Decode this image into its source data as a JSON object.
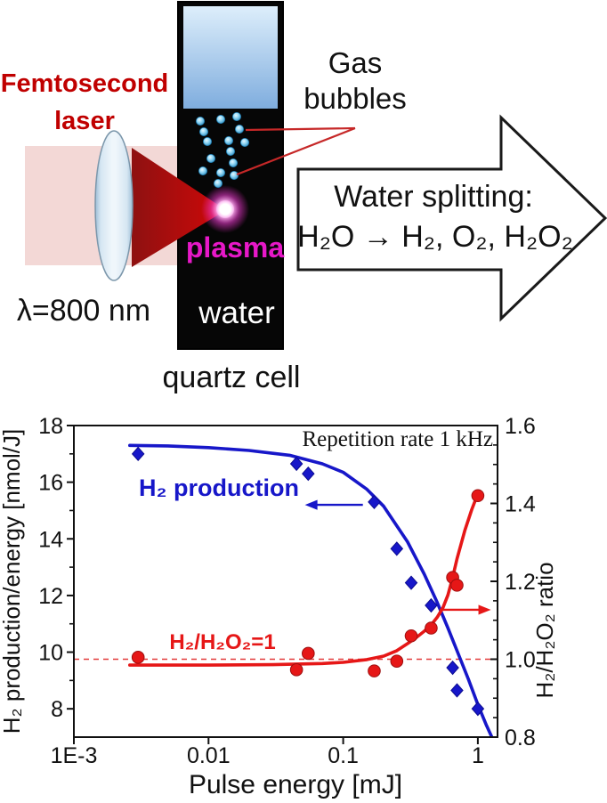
{
  "diagram": {
    "laser_label_line1": "Femtosecond",
    "laser_label_line2": "laser",
    "wavelength": "λ=800 nm",
    "gas_label_line1": "Gas",
    "gas_label_line2": "bubbles",
    "plasma_label": "plasma",
    "water_label": "water",
    "cell_label": "quartz cell",
    "arrow_title": "Water splitting:",
    "arrow_formula": "H₂O → H₂, O₂, H₂O₂",
    "colors": {
      "laser_text": "#c00000",
      "plasma_text": "#e718c8",
      "beam_pale": "#f3d8d6",
      "beam_dark": "#a50d0d",
      "bubble": "#54b7e8",
      "pointer_line": "#c62828"
    }
  },
  "chart_data": {
    "type": "scatter",
    "title": "",
    "x_axis": {
      "label": "Pulse energy [mJ]",
      "scale": "log",
      "min": 0.001,
      "max": 1.4,
      "ticks": [
        0.001,
        0.01,
        0.1,
        1
      ],
      "tick_labels": [
        "1E-3",
        "0.01",
        "0.1",
        "1"
      ]
    },
    "y_left": {
      "label": "H₂ production/energy [nmol/J]",
      "min": 7,
      "max": 18,
      "ticks": [
        8,
        10,
        12,
        14,
        16,
        18
      ],
      "tick_labels": [
        "8",
        "10",
        "12",
        "14",
        "16",
        "18"
      ],
      "minor_ticks": [
        9,
        11,
        13,
        15,
        17
      ]
    },
    "y_right": {
      "label": "H₂/H₂O₂ ratio",
      "min": 0.8,
      "max": 1.6,
      "ticks": [
        0.8,
        1.0,
        1.2,
        1.4,
        1.6
      ],
      "tick_labels": [
        "0.8",
        "1.0",
        "1.2",
        "1.4",
        "1.6"
      ],
      "minor_ticks": [
        0.85,
        0.9,
        0.95,
        1.05,
        1.1,
        1.15,
        1.25,
        1.3,
        1.35,
        1.45,
        1.5,
        1.55
      ]
    },
    "reference_line": {
      "axis": "right",
      "value": 1.0,
      "style": "dashed",
      "color": "#e23b3b"
    },
    "series": [
      {
        "name": "H₂ production",
        "axis": "left",
        "marker": "diamond",
        "color": "#1717c9",
        "marker_stroke": "#0b0b8f",
        "points": [
          [
            0.003,
            17.0
          ],
          [
            0.045,
            16.65
          ],
          [
            0.055,
            16.3
          ],
          [
            0.17,
            15.3
          ],
          [
            0.25,
            13.65
          ],
          [
            0.32,
            12.45
          ],
          [
            0.45,
            11.65
          ],
          [
            0.65,
            9.45
          ],
          [
            0.7,
            8.65
          ],
          [
            1.0,
            8.0
          ]
        ],
        "fit_curve": [
          [
            0.0026,
            17.3
          ],
          [
            0.005,
            17.28
          ],
          [
            0.01,
            17.22
          ],
          [
            0.02,
            17.12
          ],
          [
            0.04,
            16.95
          ],
          [
            0.07,
            16.65
          ],
          [
            0.1,
            16.35
          ],
          [
            0.15,
            15.75
          ],
          [
            0.2,
            15.15
          ],
          [
            0.3,
            13.9
          ],
          [
            0.4,
            12.75
          ],
          [
            0.5,
            11.75
          ],
          [
            0.6,
            10.85
          ],
          [
            0.7,
            10.05
          ],
          [
            0.85,
            9.05
          ],
          [
            1.0,
            8.15
          ],
          [
            1.15,
            7.45
          ],
          [
            1.27,
            7.0
          ]
        ]
      },
      {
        "name": "H₂/H₂O₂ ratio",
        "axis": "right",
        "marker": "circle",
        "color": "#e61717",
        "marker_stroke": "#9c0f0f",
        "points": [
          [
            0.003,
            1.005
          ],
          [
            0.045,
            0.973
          ],
          [
            0.055,
            1.015
          ],
          [
            0.17,
            0.97
          ],
          [
            0.25,
            0.995
          ],
          [
            0.32,
            1.06
          ],
          [
            0.45,
            1.08
          ],
          [
            0.65,
            1.21
          ],
          [
            0.7,
            1.19
          ],
          [
            1.0,
            1.42
          ]
        ],
        "fit_curve": [
          [
            0.0026,
            0.985
          ],
          [
            0.01,
            0.985
          ],
          [
            0.03,
            0.986
          ],
          [
            0.07,
            0.989
          ],
          [
            0.1,
            0.992
          ],
          [
            0.15,
            0.999
          ],
          [
            0.2,
            1.008
          ],
          [
            0.25,
            1.022
          ],
          [
            0.3,
            1.04
          ],
          [
            0.35,
            1.056
          ],
          [
            0.4,
            1.072
          ],
          [
            0.45,
            1.088
          ],
          [
            0.5,
            1.108
          ],
          [
            0.55,
            1.132
          ],
          [
            0.6,
            1.165
          ],
          [
            0.65,
            1.21
          ],
          [
            0.7,
            1.258
          ],
          [
            0.8,
            1.33
          ],
          [
            0.9,
            1.384
          ],
          [
            1.0,
            1.425
          ]
        ]
      }
    ],
    "pointer_arrows": [
      {
        "axis": "left",
        "y": 15.2,
        "x_start": 0.14,
        "x_end": 0.052,
        "color": "#1717c9"
      },
      {
        "axis": "right",
        "y": 1.127,
        "x_start": 0.52,
        "x_end": 1.25,
        "color": "#e61717"
      }
    ],
    "labels": {
      "series_blue": "H₂ production",
      "ratio_eq": "H₂/H₂O₂=1",
      "note": "Repetition rate 1 kHz"
    }
  }
}
